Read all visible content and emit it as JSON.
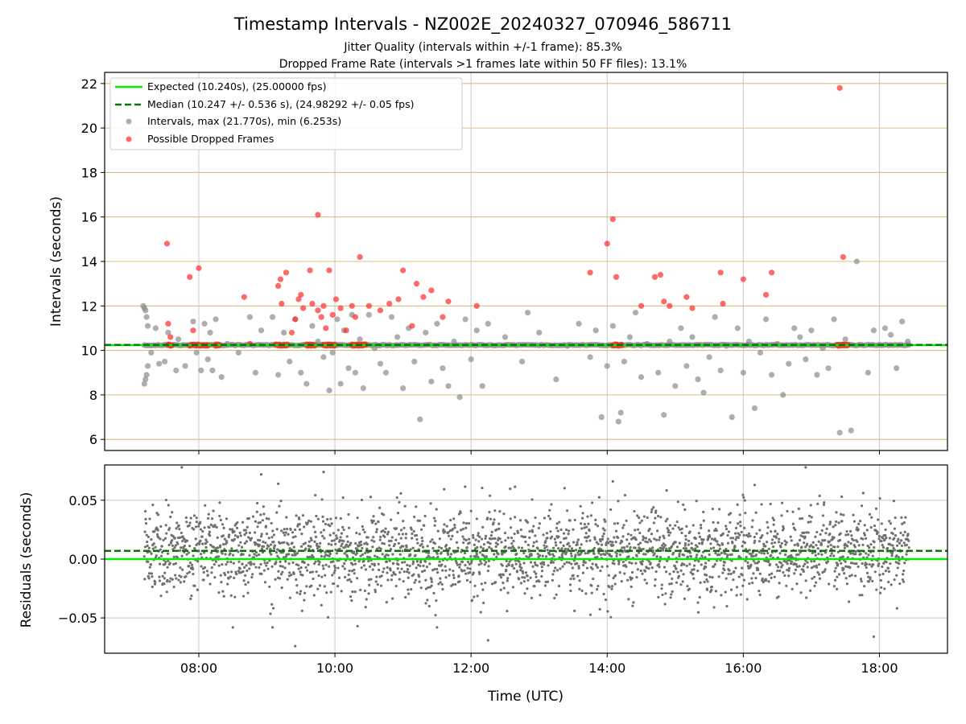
{
  "figure": {
    "title": "Timestamp Intervals - NZ002E_20240327_070946_586711",
    "subtitle_1": "Jitter Quality (intervals within +/-1 frame): 85.3%",
    "subtitle_2": "Dropped Frame Rate (intervals >1 frames late within 50 FF files): 13.1%"
  },
  "colors": {
    "expected": "#00ee00",
    "median": "#007700",
    "intervals": "#8c8c8c",
    "dropped": "#ff2a2a",
    "residuals": "#707070",
    "horizontal_grid": "#d9c07c",
    "vertical_grid": "#c8c8c8"
  },
  "chart_data": [
    {
      "type": "scatter",
      "xlabel": "",
      "ylabel": "Intervals (seconds)",
      "xlim": [
        "06:37",
        "19:00"
      ],
      "ylim": [
        5.5,
        22.5
      ],
      "xticks": [
        "08:00",
        "10:00",
        "12:00",
        "14:00",
        "16:00",
        "18:00"
      ],
      "yticks": [
        6,
        8,
        10,
        12,
        14,
        16,
        18,
        20,
        22
      ],
      "grid": true,
      "legend_position": "top-left",
      "legend": [
        {
          "label": "Expected (10.240s), (25.00000 fps)",
          "kind": "solid-line",
          "color": "#00ee00"
        },
        {
          "label": "Median (10.247 +/- 0.536 s), (24.98292 +/- 0.05 fps)",
          "kind": "dashed-line",
          "color": "#007700"
        },
        {
          "label": "Intervals, max (21.770s), min (6.253s)",
          "kind": "marker",
          "color": "#8c8c8c"
        },
        {
          "label": "Possible Dropped Frames",
          "kind": "marker",
          "color": "#ff2a2a"
        }
      ],
      "expected": 10.24,
      "median": 10.247,
      "baseline_span": [
        "07:12",
        "18:26"
      ],
      "baseline_value": 10.24,
      "series": [
        {
          "role": "intervals",
          "points": [
            [
              "07:11",
              12.0
            ],
            [
              "07:12",
              11.9
            ],
            [
              "07:13",
              11.8
            ],
            [
              "07:14",
              11.5
            ],
            [
              "07:15",
              11.1
            ],
            [
              "07:13",
              8.7
            ],
            [
              "07:12",
              8.5
            ],
            [
              "07:14",
              8.9
            ],
            [
              "07:15",
              9.3
            ],
            [
              "07:18",
              9.9
            ],
            [
              "07:22",
              11.0
            ],
            [
              "07:25",
              9.4
            ],
            [
              "07:30",
              9.5
            ],
            [
              "07:33",
              10.8
            ],
            [
              "07:40",
              9.1
            ],
            [
              "07:42",
              10.5
            ],
            [
              "07:48",
              9.3
            ],
            [
              "07:55",
              11.3
            ],
            [
              "07:58",
              9.9
            ],
            [
              "08:02",
              9.1
            ],
            [
              "08:05",
              11.2
            ],
            [
              "08:08",
              9.6
            ],
            [
              "08:10",
              10.8
            ],
            [
              "08:12",
              9.1
            ],
            [
              "08:15",
              11.4
            ],
            [
              "08:20",
              8.8
            ],
            [
              "08:25",
              10.3
            ],
            [
              "08:35",
              9.9
            ],
            [
              "08:45",
              11.5
            ],
            [
              "08:50",
              9.0
            ],
            [
              "08:55",
              10.9
            ],
            [
              "09:05",
              11.5
            ],
            [
              "09:10",
              8.9
            ],
            [
              "09:15",
              10.8
            ],
            [
              "09:20",
              9.5
            ],
            [
              "09:25",
              11.4
            ],
            [
              "09:30",
              9.0
            ],
            [
              "09:35",
              8.5
            ],
            [
              "09:40",
              11.1
            ],
            [
              "09:45",
              10.4
            ],
            [
              "09:50",
              9.7
            ],
            [
              "09:55",
              8.2
            ],
            [
              "09:58",
              9.9
            ],
            [
              "10:02",
              11.4
            ],
            [
              "10:05",
              8.5
            ],
            [
              "10:08",
              10.9
            ],
            [
              "10:12",
              9.2
            ],
            [
              "10:15",
              11.6
            ],
            [
              "10:18",
              9.0
            ],
            [
              "10:22",
              10.5
            ],
            [
              "10:25",
              8.3
            ],
            [
              "10:30",
              11.6
            ],
            [
              "10:35",
              10.1
            ],
            [
              "10:40",
              9.4
            ],
            [
              "10:45",
              9.0
            ],
            [
              "10:50",
              11.5
            ],
            [
              "10:55",
              10.6
            ],
            [
              "11:00",
              8.3
            ],
            [
              "11:05",
              11.0
            ],
            [
              "11:10",
              9.5
            ],
            [
              "11:15",
              6.9
            ],
            [
              "11:20",
              10.8
            ],
            [
              "11:25",
              8.6
            ],
            [
              "11:30",
              11.2
            ],
            [
              "11:35",
              9.2
            ],
            [
              "11:40",
              8.4
            ],
            [
              "11:45",
              10.4
            ],
            [
              "11:50",
              7.9
            ],
            [
              "11:55",
              11.4
            ],
            [
              "12:00",
              9.6
            ],
            [
              "12:05",
              10.9
            ],
            [
              "12:10",
              8.4
            ],
            [
              "12:15",
              11.2
            ],
            [
              "12:30",
              10.6
            ],
            [
              "12:45",
              9.5
            ],
            [
              "12:50",
              11.7
            ],
            [
              "13:00",
              10.8
            ],
            [
              "13:15",
              8.7
            ],
            [
              "13:25",
              10.2
            ],
            [
              "13:35",
              11.2
            ],
            [
              "13:45",
              9.7
            ],
            [
              "13:50",
              10.9
            ],
            [
              "13:55",
              7.0
            ],
            [
              "14:00",
              9.3
            ],
            [
              "14:05",
              11.1
            ],
            [
              "14:10",
              6.8
            ],
            [
              "14:12",
              7.2
            ],
            [
              "14:15",
              9.5
            ],
            [
              "14:20",
              10.6
            ],
            [
              "14:25",
              11.7
            ],
            [
              "14:30",
              8.8
            ],
            [
              "14:35",
              10.3
            ],
            [
              "14:45",
              9.0
            ],
            [
              "14:50",
              7.1
            ],
            [
              "14:55",
              10.4
            ],
            [
              "15:00",
              8.4
            ],
            [
              "15:05",
              11.0
            ],
            [
              "15:10",
              9.3
            ],
            [
              "15:15",
              10.6
            ],
            [
              "15:20",
              8.7
            ],
            [
              "15:25",
              8.1
            ],
            [
              "15:30",
              9.7
            ],
            [
              "15:35",
              11.5
            ],
            [
              "15:40",
              9.1
            ],
            [
              "15:45",
              10.2
            ],
            [
              "15:50",
              7.0
            ],
            [
              "15:55",
              11.0
            ],
            [
              "16:00",
              9.0
            ],
            [
              "16:05",
              10.4
            ],
            [
              "16:10",
              7.4
            ],
            [
              "16:15",
              9.9
            ],
            [
              "16:20",
              11.4
            ],
            [
              "16:25",
              8.9
            ],
            [
              "16:30",
              10.3
            ],
            [
              "16:35",
              8.0
            ],
            [
              "16:40",
              9.4
            ],
            [
              "16:45",
              11.0
            ],
            [
              "16:50",
              10.6
            ],
            [
              "16:55",
              9.6
            ],
            [
              "17:00",
              10.9
            ],
            [
              "17:05",
              8.9
            ],
            [
              "17:10",
              10.1
            ],
            [
              "17:15",
              9.2
            ],
            [
              "17:20",
              11.4
            ],
            [
              "17:25",
              6.3
            ],
            [
              "17:30",
              10.5
            ],
            [
              "17:35",
              6.4
            ],
            [
              "17:40",
              14.0
            ],
            [
              "17:50",
              9.0
            ],
            [
              "17:55",
              10.9
            ],
            [
              "18:05",
              11.0
            ],
            [
              "18:10",
              10.7
            ],
            [
              "18:15",
              9.2
            ],
            [
              "18:20",
              11.3
            ],
            [
              "18:25",
              10.4
            ]
          ]
        },
        {
          "role": "dropped",
          "points": [
            [
              "07:32",
              14.8
            ],
            [
              "07:33",
              11.2
            ],
            [
              "07:35",
              10.6
            ],
            [
              "07:52",
              13.3
            ],
            [
              "07:55",
              10.9
            ],
            [
              "08:00",
              13.7
            ],
            [
              "08:15",
              10.2
            ],
            [
              "08:40",
              12.4
            ],
            [
              "08:45",
              10.3
            ],
            [
              "09:10",
              12.9
            ],
            [
              "09:12",
              13.2
            ],
            [
              "09:13",
              12.1
            ],
            [
              "09:17",
              13.5
            ],
            [
              "09:22",
              10.8
            ],
            [
              "09:25",
              11.4
            ],
            [
              "09:28",
              12.3
            ],
            [
              "09:30",
              12.5
            ],
            [
              "09:32",
              11.9
            ],
            [
              "09:38",
              13.6
            ],
            [
              "09:40",
              12.1
            ],
            [
              "09:45",
              11.8
            ],
            [
              "09:48",
              11.5
            ],
            [
              "09:50",
              12.0
            ],
            [
              "09:52",
              11.0
            ],
            [
              "09:55",
              13.6
            ],
            [
              "09:58",
              11.6
            ],
            [
              "10:01",
              12.3
            ],
            [
              "10:05",
              11.9
            ],
            [
              "10:10",
              10.9
            ],
            [
              "10:15",
              12.0
            ],
            [
              "10:18",
              11.5
            ],
            [
              "10:22",
              14.2
            ],
            [
              "10:30",
              12.0
            ],
            [
              "10:40",
              11.8
            ],
            [
              "10:48",
              12.1
            ],
            [
              "10:56",
              12.3
            ],
            [
              "11:00",
              13.6
            ],
            [
              "11:08",
              11.1
            ],
            [
              "11:12",
              13.0
            ],
            [
              "11:18",
              12.4
            ],
            [
              "11:25",
              12.7
            ],
            [
              "11:35",
              11.5
            ],
            [
              "11:40",
              12.2
            ],
            [
              "12:05",
              12.0
            ],
            [
              "13:45",
              13.5
            ],
            [
              "14:00",
              14.8
            ],
            [
              "14:05",
              15.9
            ],
            [
              "14:08",
              13.3
            ],
            [
              "14:30",
              12.0
            ],
            [
              "14:42",
              13.3
            ],
            [
              "14:47",
              13.4
            ],
            [
              "14:50",
              12.2
            ],
            [
              "14:55",
              12.0
            ],
            [
              "15:10",
              12.4
            ],
            [
              "15:15",
              11.9
            ],
            [
              "15:40",
              13.5
            ],
            [
              "15:42",
              12.1
            ],
            [
              "16:00",
              13.2
            ],
            [
              "16:20",
              12.5
            ],
            [
              "16:25",
              13.5
            ],
            [
              "17:25",
              21.8
            ],
            [
              "17:28",
              14.2
            ],
            [
              "09:45",
              16.1
            ]
          ],
          "clusters": [
            [
              "07:33",
              "07:36"
            ],
            [
              "07:52",
              "08:08"
            ],
            [
              "08:15",
              "08:18"
            ],
            [
              "09:08",
              "09:18"
            ],
            [
              "09:35",
              "09:42"
            ],
            [
              "09:50",
              "10:00"
            ],
            [
              "10:15",
              "10:27"
            ],
            [
              "14:05",
              "14:13"
            ],
            [
              "17:23",
              "17:32"
            ]
          ]
        }
      ]
    },
    {
      "type": "scatter",
      "xlabel": "Time (UTC)",
      "ylabel": "Residuals (seconds)",
      "xlim": [
        "06:37",
        "19:00"
      ],
      "ylim": [
        -0.08,
        0.08
      ],
      "xticks": [
        "08:00",
        "10:00",
        "12:00",
        "14:00",
        "16:00",
        "18:00"
      ],
      "yticks": [
        0.05,
        0.0,
        -0.05
      ],
      "ytick_labels": [
        "0.05",
        "0.00",
        "−0.05"
      ],
      "grid": true,
      "expected": 0.0,
      "median": 0.007,
      "span": [
        "07:12",
        "18:26"
      ],
      "points_per_minute": 4,
      "center": 0.006,
      "sd": 0.022,
      "extremes": [
        [
          "07:45",
          0.078
        ],
        [
          "08:55",
          0.072
        ],
        [
          "09:10",
          0.064
        ],
        [
          "09:50",
          0.074
        ],
        [
          "14:05",
          0.066
        ],
        [
          "16:10",
          0.063
        ],
        [
          "16:55",
          0.078
        ],
        [
          "09:25",
          -0.074
        ],
        [
          "12:15",
          -0.069
        ],
        [
          "17:55",
          -0.066
        ],
        [
          "09:05",
          -0.058
        ],
        [
          "08:30",
          -0.058
        ],
        [
          "10:20",
          -0.057
        ],
        [
          "11:30",
          -0.058
        ]
      ]
    }
  ]
}
